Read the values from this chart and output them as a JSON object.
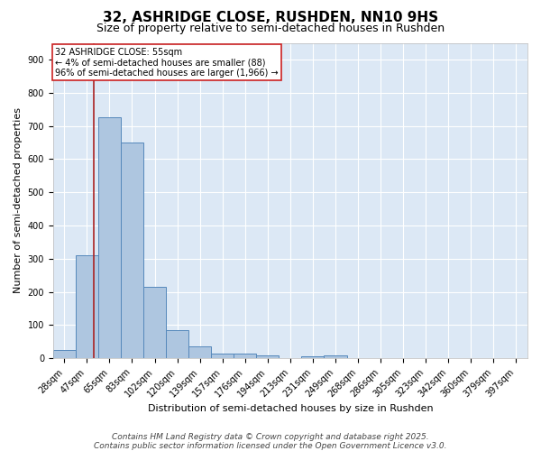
{
  "title": "32, ASHRIDGE CLOSE, RUSHDEN, NN10 9HS",
  "subtitle": "Size of property relative to semi-detached houses in Rushden",
  "xlabel": "Distribution of semi-detached houses by size in Rushden",
  "ylabel": "Number of semi-detached properties",
  "bar_labels": [
    "28sqm",
    "47sqm",
    "65sqm",
    "83sqm",
    "102sqm",
    "120sqm",
    "139sqm",
    "157sqm",
    "176sqm",
    "194sqm",
    "213sqm",
    "231sqm",
    "249sqm",
    "268sqm",
    "286sqm",
    "305sqm",
    "323sqm",
    "342sqm",
    "360sqm",
    "379sqm",
    "397sqm"
  ],
  "bar_values": [
    25,
    310,
    725,
    650,
    215,
    85,
    35,
    15,
    15,
    10,
    0,
    5,
    8,
    0,
    0,
    0,
    0,
    0,
    0,
    0,
    0
  ],
  "bar_color": "#aec6e0",
  "bar_edge_color": "#5588bb",
  "ylim": [
    0,
    950
  ],
  "yticks": [
    0,
    100,
    200,
    300,
    400,
    500,
    600,
    700,
    800,
    900
  ],
  "vline_color": "#aa2222",
  "vline_x": 1.82,
  "annotation_title": "32 ASHRIDGE CLOSE: 55sqm",
  "annotation_line1": "← 4% of semi-detached houses are smaller (88)",
  "annotation_line2": "96% of semi-detached houses are larger (1,966) →",
  "annotation_box_facecolor": "#ffffff",
  "annotation_box_edgecolor": "#cc2222",
  "bg_color": "#ffffff",
  "plot_bg_color": "#dce8f5",
  "grid_color": "#ffffff",
  "footer1": "Contains HM Land Registry data © Crown copyright and database right 2025.",
  "footer2": "Contains public sector information licensed under the Open Government Licence v3.0.",
  "title_fontsize": 11,
  "subtitle_fontsize": 9,
  "axis_label_fontsize": 8,
  "tick_fontsize": 7,
  "annotation_fontsize": 7,
  "footer_fontsize": 6.5
}
